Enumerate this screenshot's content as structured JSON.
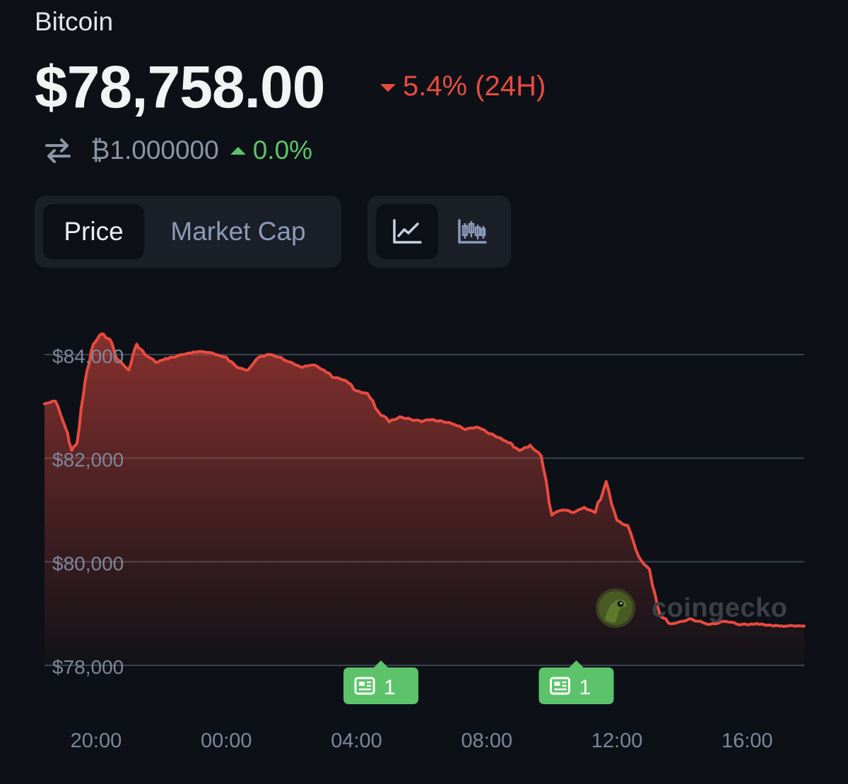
{
  "coin": {
    "name": "Bitcoin"
  },
  "price": {
    "value": "$78,758.00",
    "change": "5.4% (24H)",
    "btc_value": "₿1.000000",
    "btc_change": "0.0%"
  },
  "icons": {
    "swap": "swap-arrows-icon",
    "change_down": "triangle-down-icon",
    "change_up": "triangle-up-icon",
    "line_chart": "line-chart-icon",
    "candlestick": "candlestick-icon",
    "news": "newspaper-icon",
    "watermark_logo": "coingecko-logo-icon"
  },
  "tabs": {
    "price_label": "Price",
    "market_cap_label": "Market Cap",
    "active": "Price",
    "chart_type_active": "line"
  },
  "news_markers": [
    {
      "time": "04:45",
      "count": "1"
    },
    {
      "time": "10:45",
      "count": "1"
    }
  ],
  "watermark": {
    "text": "coingecko"
  },
  "colors": {
    "background": "#0d1117",
    "line": "#ea4b40",
    "negative": "#ea4b40",
    "positive": "#5cc36a",
    "news_badge": "#5cc36a"
  },
  "chart_data": {
    "type": "area",
    "title": "",
    "xlabel": "",
    "ylabel": "",
    "x_ticks": [
      "20:00",
      "00:00",
      "04:00",
      "08:00",
      "12:00",
      "16:00"
    ],
    "y_ticks": [
      "$78,000",
      "$80,000",
      "$82,000",
      "$84,000"
    ],
    "ylim": [
      78000,
      84000
    ],
    "xlim": [
      "18:25",
      "17:45"
    ],
    "grid": true,
    "legend": "none",
    "series": [
      {
        "x": [
          "18:25",
          "18:45",
          "19:05",
          "19:15",
          "19:25",
          "19:40",
          "19:55",
          "20:10",
          "20:25",
          "20:40",
          "21:00",
          "21:15",
          "21:30",
          "21:50",
          "22:05",
          "22:20",
          "22:40",
          "23:00",
          "23:20",
          "23:40",
          "00:00",
          "00:20",
          "00:40",
          "01:00",
          "01:20",
          "01:40",
          "02:00",
          "02:20",
          "02:40",
          "03:00",
          "03:20",
          "03:40",
          "04:00",
          "04:20",
          "04:40",
          "05:00",
          "05:20",
          "05:40",
          "06:00",
          "06:20",
          "06:40",
          "07:00",
          "07:20",
          "07:40",
          "08:00",
          "08:20",
          "08:40",
          "09:00",
          "09:20",
          "09:40",
          "10:00",
          "10:20",
          "10:40",
          "11:00",
          "11:20",
          "11:40",
          "12:00",
          "12:20",
          "12:40",
          "13:00",
          "13:20",
          "13:40",
          "14:00",
          "14:15",
          "14:30",
          "14:45",
          "15:00",
          "15:20",
          "15:40",
          "16:00",
          "16:15",
          "16:30",
          "16:45",
          "17:00",
          "17:15",
          "17:30",
          "17:45"
        ],
        "values": [
          83050,
          83100,
          82550,
          82150,
          82300,
          83500,
          84200,
          84400,
          84300,
          83900,
          83700,
          84200,
          84000,
          83850,
          83900,
          83950,
          84000,
          84050,
          84050,
          84000,
          83950,
          83750,
          83700,
          83950,
          84000,
          83950,
          83850,
          83750,
          83800,
          83700,
          83550,
          83500,
          83300,
          83250,
          82900,
          82700,
          82800,
          82750,
          82700,
          82750,
          82700,
          82650,
          82550,
          82600,
          82500,
          82400,
          82300,
          82150,
          82250,
          82050,
          80900,
          81000,
          80950,
          81050,
          80950,
          81550,
          80800,
          80700,
          80100,
          79850,
          78950,
          78800,
          78850,
          78900,
          78850,
          78800,
          78800,
          78850,
          78800,
          78780,
          78800,
          78790,
          78770,
          78760,
          78760,
          78758,
          78758
        ]
      }
    ]
  }
}
